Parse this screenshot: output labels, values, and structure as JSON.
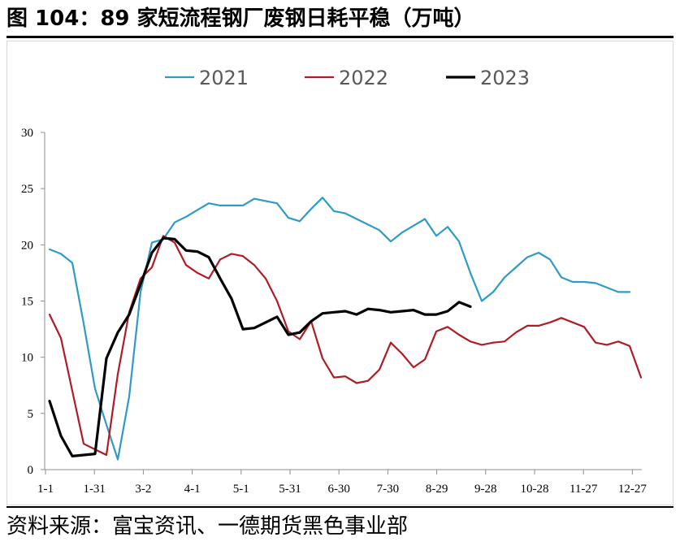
{
  "figure": {
    "title": "图 104：89 家短流程钢厂废钢日耗平稳（万吨）",
    "source": "资料来源：富宝资讯、一德期货黑色事业部"
  },
  "chart_data": {
    "type": "line",
    "ylim": [
      0,
      30
    ],
    "yticks": [
      0,
      5,
      10,
      15,
      20,
      25,
      30
    ],
    "x_ticks": [
      "1-1",
      "1-31",
      "3-2",
      "4-1",
      "5-1",
      "5-31",
      "6-30",
      "7-30",
      "8-29",
      "9-28",
      "10-28",
      "11-27",
      "12-27"
    ],
    "legend_position": "top",
    "grid": false,
    "series": [
      {
        "name": "2021",
        "color": "#2e9bc6",
        "values": [
          19.6,
          19.2,
          18.4,
          13,
          7.2,
          4,
          0.9,
          6.5,
          15.8,
          20.2,
          20.5,
          22,
          22.5,
          23.1,
          23.7,
          23.5,
          23.5,
          23.5,
          24.1,
          23.9,
          23.7,
          22.4,
          22.1,
          23.2,
          24.2,
          23.0,
          22.8,
          22.3,
          21.8,
          21.3,
          20.3,
          21.1,
          21.7,
          22.3,
          20.8,
          21.6,
          20.3,
          17.5,
          15.0,
          15.8,
          17.1,
          18.0,
          18.9,
          19.3,
          18.7,
          17.1,
          16.7,
          16.7,
          16.6,
          16.2,
          15.8,
          15.8
        ]
      },
      {
        "name": "2022",
        "color": "#b01c25",
        "values": [
          13.8,
          11.7,
          7.0,
          2.3,
          1.8,
          1.3,
          8.5,
          14.0,
          17.0,
          18.0,
          20.8,
          20.2,
          18.2,
          17.5,
          17.0,
          18.7,
          19.2,
          19.0,
          18.2,
          17.0,
          15.0,
          12.3,
          11.6,
          13.2,
          9.9,
          8.2,
          8.3,
          7.7,
          7.9,
          8.9,
          11.3,
          10.3,
          9.1,
          9.8,
          12.3,
          12.7,
          12.0,
          11.4,
          11.1,
          11.3,
          11.4,
          12.2,
          12.8,
          12.8,
          13.1,
          13.5,
          13.1,
          12.7,
          11.3,
          11.1,
          11.4,
          11.0,
          8.2
        ]
      },
      {
        "name": "2023",
        "color": "#000000",
        "values": [
          6.1,
          3.0,
          1.2,
          1.3,
          1.4,
          9.9,
          12.2,
          13.8,
          16.5,
          19.3,
          20.6,
          20.5,
          19.5,
          19.4,
          18.9,
          17.0,
          15.2,
          12.5,
          12.6,
          13.1,
          13.6,
          12.0,
          12.2,
          13.2,
          13.9,
          14.0,
          14.1,
          13.8,
          14.3,
          14.2,
          14.0,
          14.1,
          14.2,
          13.8,
          13.8,
          14.1,
          14.9,
          14.5
        ]
      }
    ]
  }
}
